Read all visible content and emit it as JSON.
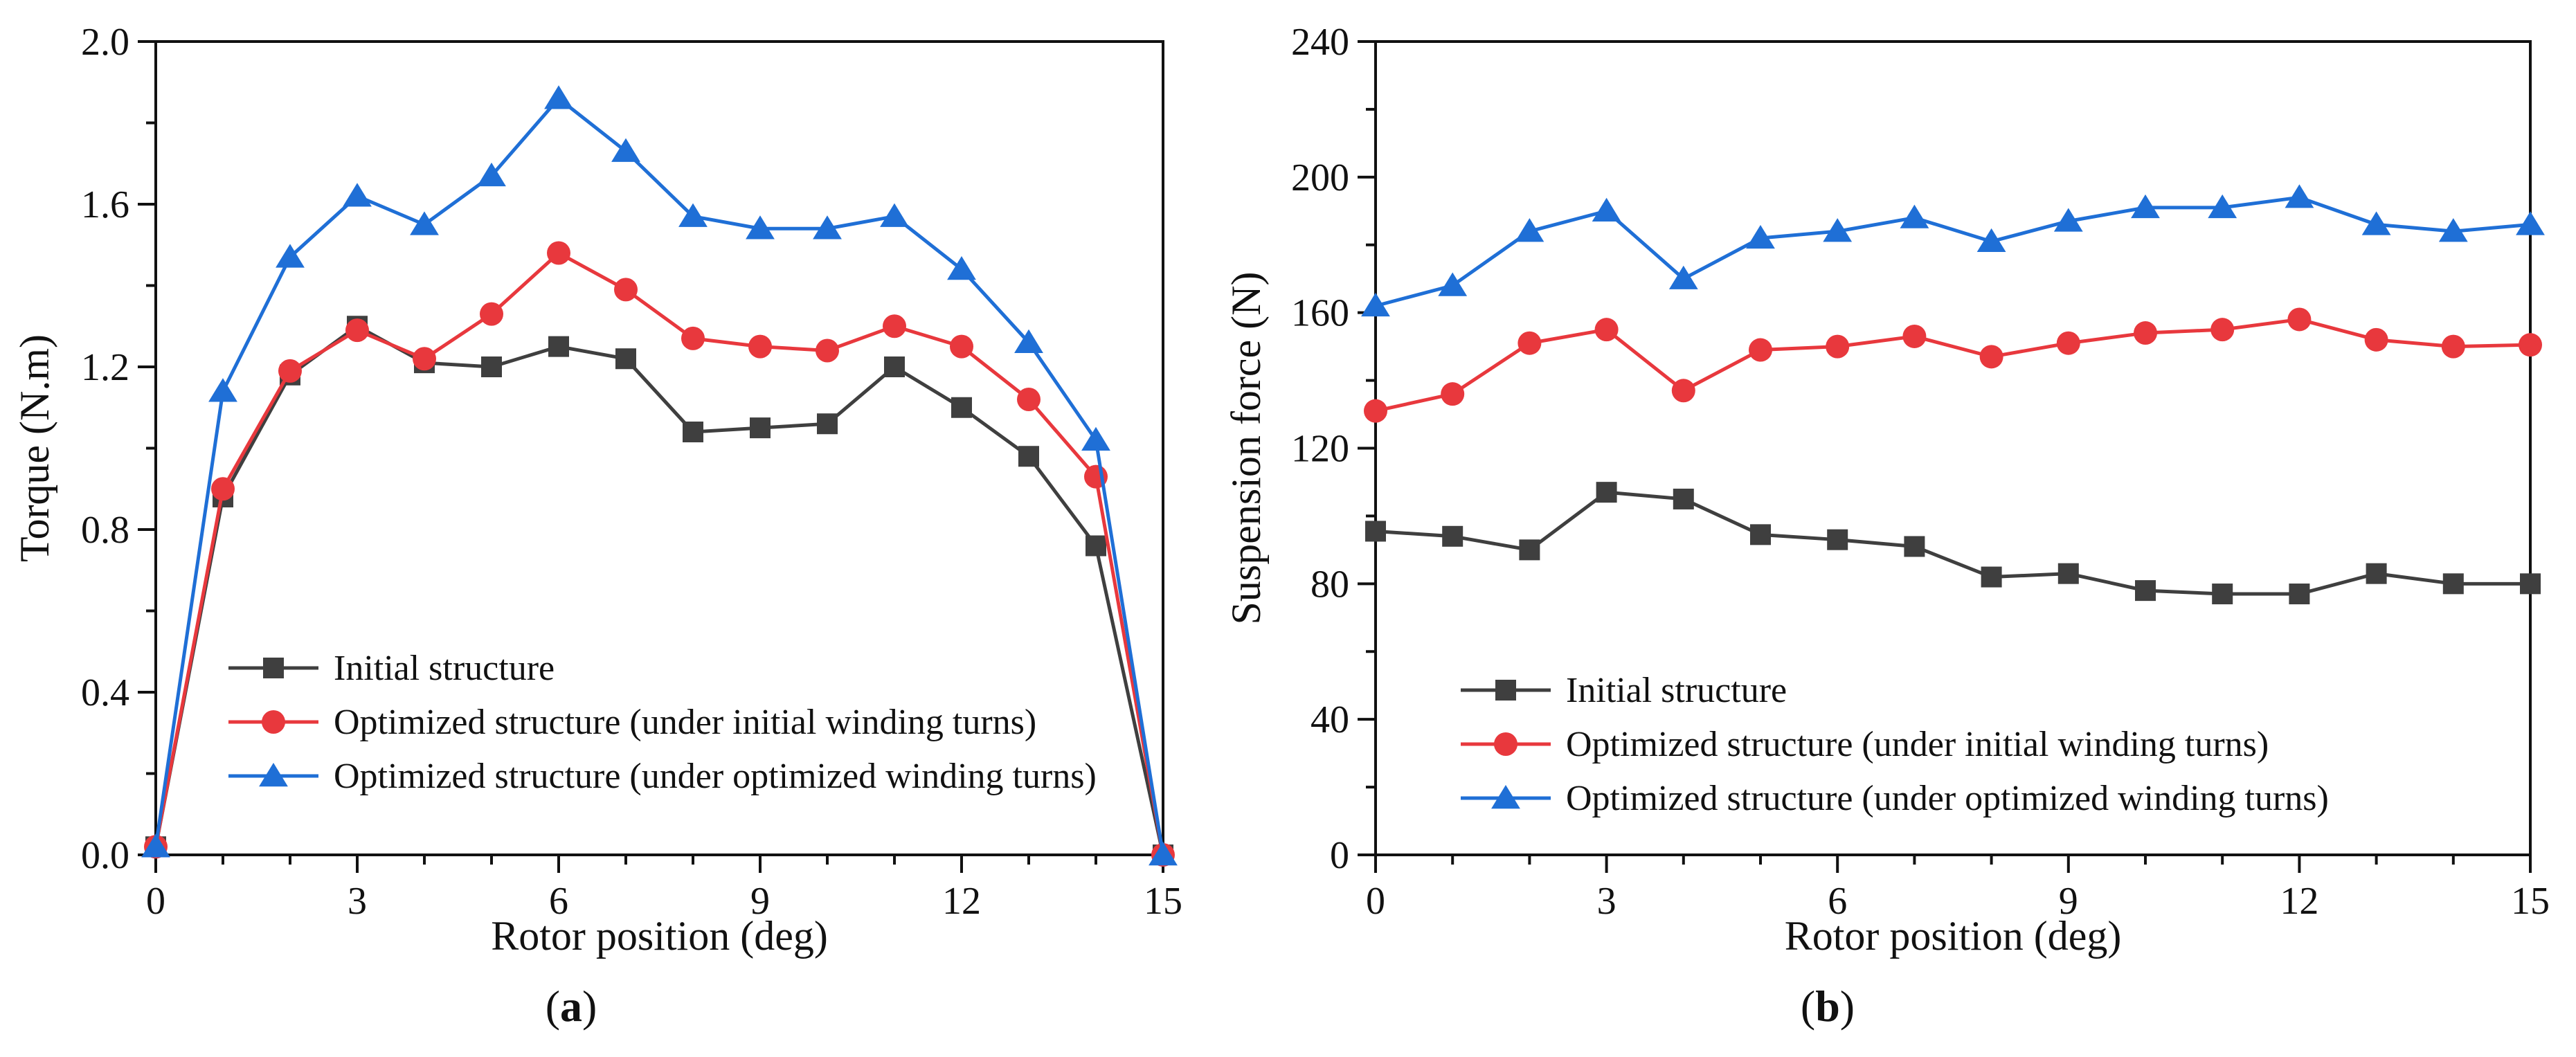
{
  "colors": {
    "initial": "#3f3f3f",
    "opt_initial_turns": "#e8383d",
    "opt_opt_turns": "#1f6fd6",
    "axis": "#111111"
  },
  "chart_data": [
    {
      "type": "line",
      "panel_label": {
        "open": "(",
        "letter": "a",
        "close": ")"
      },
      "xlabel": "Rotor position (deg)",
      "ylabel": "Torque (N.m)",
      "xlim": [
        0,
        15
      ],
      "ylim": [
        0,
        2.0
      ],
      "xticks": [
        0,
        3,
        6,
        9,
        12,
        15
      ],
      "xtick_labels": [
        "0",
        "3",
        "6",
        "9",
        "12",
        "15"
      ],
      "yticks": [
        0,
        0.4,
        0.8,
        1.2,
        1.6,
        2.0
      ],
      "ytick_labels": [
        "0.0",
        "0.4",
        "0.8",
        "1.2",
        "1.6",
        "2.0"
      ],
      "grid": false,
      "legend_position": "bottom-left",
      "x": [
        0,
        1,
        2,
        3,
        4,
        5,
        6,
        7,
        8,
        9,
        10,
        11,
        12,
        13,
        14,
        15
      ],
      "series": [
        {
          "name": "Initial structure",
          "marker": "square",
          "color_key": "initial",
          "values": [
            0.02,
            0.88,
            1.18,
            1.3,
            1.21,
            1.2,
            1.25,
            1.22,
            1.04,
            1.05,
            1.06,
            1.2,
            1.1,
            0.98,
            0.76,
            0.0
          ]
        },
        {
          "name": "Optimized structure (under initial winding turns)",
          "marker": "circle",
          "color_key": "opt_initial_turns",
          "values": [
            0.02,
            0.9,
            1.19,
            1.29,
            1.22,
            1.33,
            1.48,
            1.39,
            1.27,
            1.25,
            1.24,
            1.3,
            1.25,
            1.12,
            0.93,
            0.0
          ]
        },
        {
          "name": "Optimized structure (under optimized winding turns)",
          "marker": "triangle",
          "color_key": "opt_opt_turns",
          "values": [
            0.02,
            1.14,
            1.47,
            1.62,
            1.55,
            1.67,
            1.86,
            1.73,
            1.57,
            1.54,
            1.54,
            1.57,
            1.44,
            1.26,
            1.02,
            0.0
          ]
        }
      ]
    },
    {
      "type": "line",
      "panel_label": {
        "open": "(",
        "letter": "b",
        "close": ")"
      },
      "xlabel": "Rotor position (deg)",
      "ylabel": "Suspension force (N)",
      "xlim": [
        0,
        15
      ],
      "ylim": [
        0,
        240
      ],
      "xticks": [
        0,
        3,
        6,
        9,
        12,
        15
      ],
      "xtick_labels": [
        "0",
        "3",
        "6",
        "9",
        "12",
        "15"
      ],
      "yticks": [
        0,
        40,
        80,
        120,
        160,
        200,
        240
      ],
      "ytick_labels": [
        "0",
        "40",
        "80",
        "120",
        "160",
        "200",
        "240"
      ],
      "grid": false,
      "legend_position": "bottom-left",
      "x": [
        0,
        1,
        2,
        3,
        4,
        5,
        6,
        7,
        8,
        9,
        10,
        11,
        12,
        13,
        14,
        15
      ],
      "series": [
        {
          "name": "Initial structure",
          "marker": "square",
          "color_key": "initial",
          "values": [
            95.5,
            94,
            90,
            107,
            105,
            94.5,
            93,
            91,
            82,
            83,
            78,
            77,
            77,
            83,
            80,
            80
          ]
        },
        {
          "name": "Optimized structure (under initial winding turns)",
          "marker": "circle",
          "color_key": "opt_initial_turns",
          "values": [
            131,
            136,
            151,
            155,
            137,
            149,
            150,
            153,
            147,
            151,
            154,
            155,
            158,
            152,
            150,
            150.5
          ]
        },
        {
          "name": "Optimized structure (under optimized winding turns)",
          "marker": "triangle",
          "color_key": "opt_opt_turns",
          "values": [
            162,
            168,
            184,
            190,
            170,
            182,
            184,
            188,
            181,
            187,
            191,
            191,
            194,
            186,
            184,
            186
          ]
        }
      ]
    }
  ]
}
